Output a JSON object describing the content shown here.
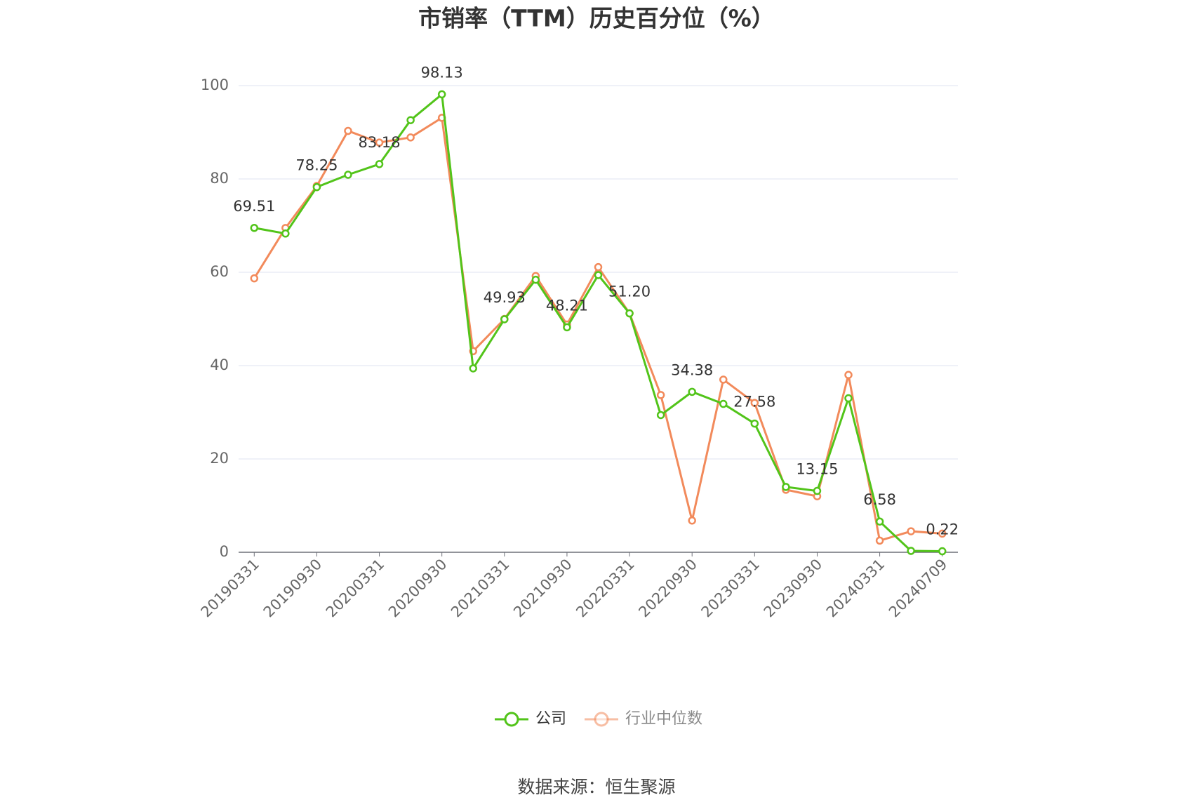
{
  "chart_data": {
    "type": "line",
    "title": "市销率（TTM）历史百分位（%）",
    "source": "数据来源：恒生聚源",
    "categories": [
      "20190331",
      null,
      "20190930",
      null,
      "20200331",
      null,
      "20200930",
      null,
      "20210331",
      null,
      "20210930",
      null,
      "20220331",
      null,
      "20220930",
      null,
      "20230331",
      null,
      "20230930",
      null,
      "20240331",
      null,
      "20240709"
    ],
    "ylim": [
      0,
      100
    ],
    "yticks": [
      0,
      20,
      40,
      60,
      80,
      100
    ],
    "grid": true,
    "legend": "bottom",
    "series": [
      {
        "name": "公司",
        "color": "#52c41a",
        "values": [
          69.51,
          68.3,
          78.25,
          80.9,
          83.18,
          92.6,
          98.13,
          39.4,
          49.93,
          58.4,
          48.21,
          59.4,
          51.2,
          29.4,
          34.38,
          31.8,
          27.58,
          14.0,
          13.15,
          33.0,
          6.58,
          0.3,
          0.22
        ],
        "value_labels": [
          "69.51",
          null,
          "78.25",
          null,
          "83.18",
          null,
          "98.13",
          null,
          "49.93",
          null,
          "48.21",
          null,
          "51.20",
          null,
          "34.38",
          null,
          "27.58",
          null,
          "13.15",
          null,
          "6.58",
          null,
          "0.22"
        ]
      },
      {
        "name": "行业中位数",
        "color": "#f28a5b",
        "values": [
          58.7,
          69.5,
          78.5,
          90.3,
          87.8,
          88.9,
          93.1,
          43.1,
          50.0,
          59.2,
          48.8,
          61.1,
          51.2,
          33.7,
          6.8,
          37.0,
          32.0,
          13.4,
          12.0,
          38.0,
          2.5,
          4.5,
          4.0
        ]
      }
    ]
  }
}
